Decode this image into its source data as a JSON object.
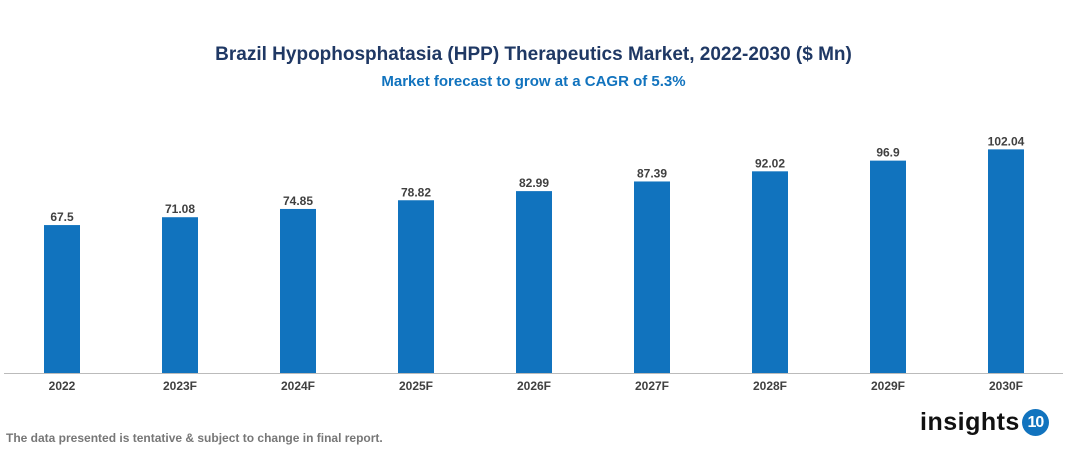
{
  "chart_data": {
    "type": "bar",
    "title": "Brazil Hypophosphatasia (HPP) Therapeutics Market, 2022-2030 ($ Mn)",
    "subtitle": "Market forecast to grow at a CAGR of 5.3%",
    "categories": [
      "2022",
      "2023F",
      "2024F",
      "2025F",
      "2026F",
      "2027F",
      "2028F",
      "2029F",
      "2030F"
    ],
    "values": [
      67.5,
      71.08,
      74.85,
      78.82,
      82.99,
      87.39,
      92.02,
      96.9,
      102.04
    ],
    "value_labels": [
      "67.5",
      "71.08",
      "74.85",
      "78.82",
      "82.99",
      "87.39",
      "92.02",
      "96.9",
      "102.04"
    ],
    "xlabel": "",
    "ylabel": "",
    "ylim": [
      0,
      120
    ],
    "grid": false,
    "bar_color": "#1173be"
  },
  "footer": {
    "note": "The data presented is tentative & subject to change in final report."
  },
  "logo": {
    "text": "insights",
    "number": "10"
  }
}
